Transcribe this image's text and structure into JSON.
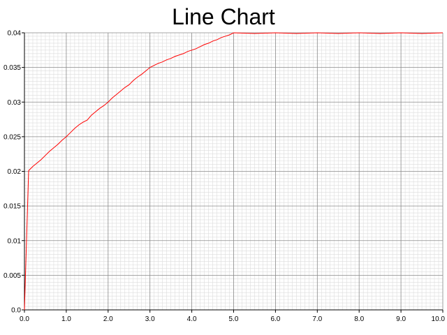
{
  "chart_data": {
    "type": "line",
    "title": "Line Chart",
    "xlabel": "",
    "ylabel": "",
    "xlim": [
      0,
      10
    ],
    "ylim": [
      0,
      0.04
    ],
    "x_ticks": [
      "0.0",
      "1.0",
      "2.0",
      "3.0",
      "4.0",
      "5.0",
      "6.0",
      "7.0",
      "8.0",
      "9.0",
      "10.0"
    ],
    "y_ticks": [
      "0.0",
      "0.005",
      "0.01",
      "0.015",
      "0.02",
      "0.025",
      "0.03",
      "0.035",
      "0.04"
    ],
    "x_tick_values": [
      0,
      1,
      2,
      3,
      4,
      5,
      6,
      7,
      8,
      9,
      10
    ],
    "y_tick_values": [
      0,
      0.005,
      0.01,
      0.015,
      0.02,
      0.025,
      0.03,
      0.035,
      0.04
    ],
    "grid": true,
    "minor_grid": true,
    "line_color": "#ff0000",
    "series": [
      {
        "x": [
          0,
          0.1,
          0.2,
          0.3,
          0.4,
          0.5,
          0.6,
          0.7,
          0.8,
          0.9,
          1.0,
          1.1,
          1.2,
          1.3,
          1.4,
          1.5,
          1.6,
          1.7,
          1.8,
          1.9,
          2.0,
          2.1,
          2.2,
          2.3,
          2.4,
          2.5,
          2.6,
          2.7,
          2.8,
          2.9,
          3.0,
          3.1,
          3.2,
          3.3,
          3.4,
          3.5,
          3.6,
          3.7,
          3.8,
          3.9,
          4.0,
          4.1,
          4.2,
          4.3,
          4.4,
          4.5,
          4.6,
          4.7,
          4.8,
          4.9,
          5.0,
          5.5,
          6.0,
          6.5,
          7.0,
          7.5,
          8.0,
          8.5,
          9.0,
          9.5,
          10.0
        ],
        "values": [
          0,
          0.0201,
          0.0207,
          0.0212,
          0.0217,
          0.0223,
          0.0229,
          0.0234,
          0.0239,
          0.0245,
          0.025,
          0.0256,
          0.0262,
          0.0267,
          0.0271,
          0.0274,
          0.0281,
          0.0286,
          0.0291,
          0.0295,
          0.03,
          0.0306,
          0.0311,
          0.0316,
          0.0321,
          0.0325,
          0.0331,
          0.0336,
          0.034,
          0.0345,
          0.035,
          0.0353,
          0.0356,
          0.0358,
          0.0361,
          0.0363,
          0.0366,
          0.0368,
          0.037,
          0.0373,
          0.0375,
          0.0377,
          0.038,
          0.0383,
          0.0385,
          0.0388,
          0.039,
          0.0393,
          0.0395,
          0.0397,
          0.04,
          0.0399,
          0.04,
          0.0399,
          0.04,
          0.0399,
          0.04,
          0.0399,
          0.04,
          0.0399,
          0.04
        ]
      }
    ]
  }
}
